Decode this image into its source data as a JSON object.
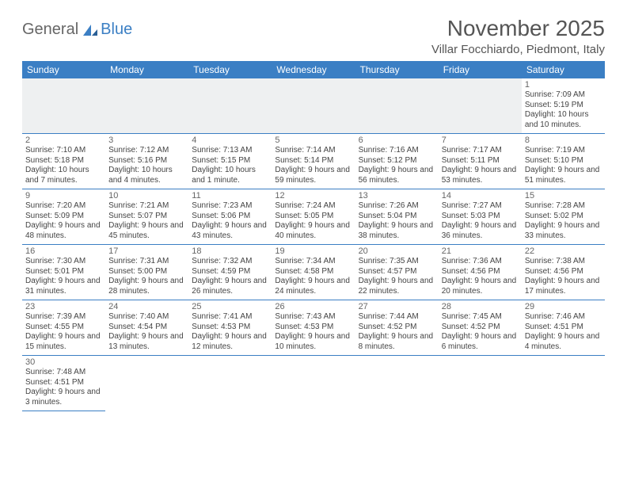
{
  "logo": {
    "text1": "General",
    "text2": "Blue"
  },
  "title": "November 2025",
  "location": "Villar Focchiardo, Piedmont, Italy",
  "colors": {
    "header_bg": "#3b7fc4",
    "header_fg": "#ffffff",
    "rule": "#3b7fc4",
    "blank_bg": "#eef0f1"
  },
  "weekdays": [
    "Sunday",
    "Monday",
    "Tuesday",
    "Wednesday",
    "Thursday",
    "Friday",
    "Saturday"
  ],
  "days": {
    "1": {
      "sunrise": "Sunrise: 7:09 AM",
      "sunset": "Sunset: 5:19 PM",
      "daylight": "Daylight: 10 hours and 10 minutes."
    },
    "2": {
      "sunrise": "Sunrise: 7:10 AM",
      "sunset": "Sunset: 5:18 PM",
      "daylight": "Daylight: 10 hours and 7 minutes."
    },
    "3": {
      "sunrise": "Sunrise: 7:12 AM",
      "sunset": "Sunset: 5:16 PM",
      "daylight": "Daylight: 10 hours and 4 minutes."
    },
    "4": {
      "sunrise": "Sunrise: 7:13 AM",
      "sunset": "Sunset: 5:15 PM",
      "daylight": "Daylight: 10 hours and 1 minute."
    },
    "5": {
      "sunrise": "Sunrise: 7:14 AM",
      "sunset": "Sunset: 5:14 PM",
      "daylight": "Daylight: 9 hours and 59 minutes."
    },
    "6": {
      "sunrise": "Sunrise: 7:16 AM",
      "sunset": "Sunset: 5:12 PM",
      "daylight": "Daylight: 9 hours and 56 minutes."
    },
    "7": {
      "sunrise": "Sunrise: 7:17 AM",
      "sunset": "Sunset: 5:11 PM",
      "daylight": "Daylight: 9 hours and 53 minutes."
    },
    "8": {
      "sunrise": "Sunrise: 7:19 AM",
      "sunset": "Sunset: 5:10 PM",
      "daylight": "Daylight: 9 hours and 51 minutes."
    },
    "9": {
      "sunrise": "Sunrise: 7:20 AM",
      "sunset": "Sunset: 5:09 PM",
      "daylight": "Daylight: 9 hours and 48 minutes."
    },
    "10": {
      "sunrise": "Sunrise: 7:21 AM",
      "sunset": "Sunset: 5:07 PM",
      "daylight": "Daylight: 9 hours and 45 minutes."
    },
    "11": {
      "sunrise": "Sunrise: 7:23 AM",
      "sunset": "Sunset: 5:06 PM",
      "daylight": "Daylight: 9 hours and 43 minutes."
    },
    "12": {
      "sunrise": "Sunrise: 7:24 AM",
      "sunset": "Sunset: 5:05 PM",
      "daylight": "Daylight: 9 hours and 40 minutes."
    },
    "13": {
      "sunrise": "Sunrise: 7:26 AM",
      "sunset": "Sunset: 5:04 PM",
      "daylight": "Daylight: 9 hours and 38 minutes."
    },
    "14": {
      "sunrise": "Sunrise: 7:27 AM",
      "sunset": "Sunset: 5:03 PM",
      "daylight": "Daylight: 9 hours and 36 minutes."
    },
    "15": {
      "sunrise": "Sunrise: 7:28 AM",
      "sunset": "Sunset: 5:02 PM",
      "daylight": "Daylight: 9 hours and 33 minutes."
    },
    "16": {
      "sunrise": "Sunrise: 7:30 AM",
      "sunset": "Sunset: 5:01 PM",
      "daylight": "Daylight: 9 hours and 31 minutes."
    },
    "17": {
      "sunrise": "Sunrise: 7:31 AM",
      "sunset": "Sunset: 5:00 PM",
      "daylight": "Daylight: 9 hours and 28 minutes."
    },
    "18": {
      "sunrise": "Sunrise: 7:32 AM",
      "sunset": "Sunset: 4:59 PM",
      "daylight": "Daylight: 9 hours and 26 minutes."
    },
    "19": {
      "sunrise": "Sunrise: 7:34 AM",
      "sunset": "Sunset: 4:58 PM",
      "daylight": "Daylight: 9 hours and 24 minutes."
    },
    "20": {
      "sunrise": "Sunrise: 7:35 AM",
      "sunset": "Sunset: 4:57 PM",
      "daylight": "Daylight: 9 hours and 22 minutes."
    },
    "21": {
      "sunrise": "Sunrise: 7:36 AM",
      "sunset": "Sunset: 4:56 PM",
      "daylight": "Daylight: 9 hours and 20 minutes."
    },
    "22": {
      "sunrise": "Sunrise: 7:38 AM",
      "sunset": "Sunset: 4:56 PM",
      "daylight": "Daylight: 9 hours and 17 minutes."
    },
    "23": {
      "sunrise": "Sunrise: 7:39 AM",
      "sunset": "Sunset: 4:55 PM",
      "daylight": "Daylight: 9 hours and 15 minutes."
    },
    "24": {
      "sunrise": "Sunrise: 7:40 AM",
      "sunset": "Sunset: 4:54 PM",
      "daylight": "Daylight: 9 hours and 13 minutes."
    },
    "25": {
      "sunrise": "Sunrise: 7:41 AM",
      "sunset": "Sunset: 4:53 PM",
      "daylight": "Daylight: 9 hours and 12 minutes."
    },
    "26": {
      "sunrise": "Sunrise: 7:43 AM",
      "sunset": "Sunset: 4:53 PM",
      "daylight": "Daylight: 9 hours and 10 minutes."
    },
    "27": {
      "sunrise": "Sunrise: 7:44 AM",
      "sunset": "Sunset: 4:52 PM",
      "daylight": "Daylight: 9 hours and 8 minutes."
    },
    "28": {
      "sunrise": "Sunrise: 7:45 AM",
      "sunset": "Sunset: 4:52 PM",
      "daylight": "Daylight: 9 hours and 6 minutes."
    },
    "29": {
      "sunrise": "Sunrise: 7:46 AM",
      "sunset": "Sunset: 4:51 PM",
      "daylight": "Daylight: 9 hours and 4 minutes."
    },
    "30": {
      "sunrise": "Sunrise: 7:48 AM",
      "sunset": "Sunset: 4:51 PM",
      "daylight": "Daylight: 9 hours and 3 minutes."
    }
  },
  "grid": [
    [
      null,
      null,
      null,
      null,
      null,
      null,
      "1"
    ],
    [
      "2",
      "3",
      "4",
      "5",
      "6",
      "7",
      "8"
    ],
    [
      "9",
      "10",
      "11",
      "12",
      "13",
      "14",
      "15"
    ],
    [
      "16",
      "17",
      "18",
      "19",
      "20",
      "21",
      "22"
    ],
    [
      "23",
      "24",
      "25",
      "26",
      "27",
      "28",
      "29"
    ],
    [
      "30",
      null,
      null,
      null,
      null,
      null,
      null
    ]
  ]
}
